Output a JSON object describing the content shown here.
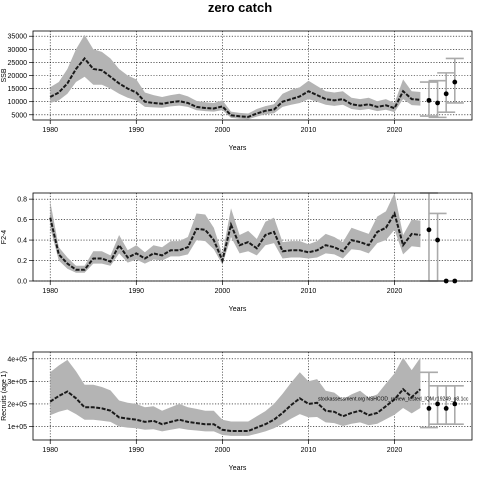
{
  "figure": {
    "title": "zero catch"
  },
  "chart_data": [
    {
      "type": "line",
      "id": "ssb",
      "xlabel": "Years",
      "ylabel": "SSB",
      "xlim": [
        1978,
        2029
      ],
      "ylim": [
        3000,
        37000
      ],
      "xticks": [
        1980,
        1990,
        2000,
        2010,
        2020
      ],
      "yticks": [
        5000,
        10000,
        15000,
        20000,
        25000,
        30000,
        35000
      ],
      "ytick_labels": [
        "5000",
        "10000",
        "15000",
        "20000",
        "25000",
        "30000",
        "35000"
      ],
      "grid": true,
      "note": "",
      "series": [
        {
          "x": [
            1980,
            1981,
            1982,
            1983,
            1984,
            1985,
            1986,
            1987,
            1988,
            1989,
            1990,
            1991,
            1992,
            1993,
            1994,
            1995,
            1996,
            1997,
            1998,
            1999,
            2000,
            2001,
            2002,
            2003,
            2004,
            2005,
            2006,
            2007,
            2008,
            2009,
            2010,
            2011,
            2012,
            2013,
            2014,
            2015,
            2016,
            2017,
            2018,
            2019,
            2020,
            2021,
            2022,
            2023
          ],
          "values": [
            11800,
            13500,
            17000,
            22500,
            26500,
            22500,
            22000,
            19500,
            17000,
            15000,
            13500,
            10000,
            9500,
            9200,
            9800,
            10200,
            9500,
            8000,
            7600,
            7400,
            8200,
            4800,
            4400,
            4200,
            5500,
            6500,
            7000,
            10000,
            11000,
            12000,
            14000,
            12500,
            11000,
            10500,
            11000,
            9000,
            8500,
            9000,
            8000,
            8600,
            7500,
            14000,
            11000,
            10700
          ],
          "lower": [
            9500,
            10500,
            13000,
            17500,
            19500,
            16500,
            16500,
            15000,
            13000,
            11500,
            10500,
            8000,
            7800,
            7700,
            8200,
            8500,
            8000,
            6700,
            6400,
            6200,
            6800,
            3800,
            3500,
            3300,
            4300,
            5200,
            5600,
            8000,
            8800,
            9500,
            11000,
            10000,
            8800,
            8400,
            8800,
            7200,
            6800,
            7200,
            6400,
            6900,
            6000,
            11000,
            8700,
            8500
          ],
          "upper": [
            15500,
            17500,
            22500,
            30000,
            35500,
            30000,
            29000,
            26500,
            22500,
            20000,
            18500,
            13500,
            12500,
            11800,
            12500,
            13000,
            12000,
            10300,
            9800,
            9500,
            10500,
            6200,
            5700,
            5500,
            7200,
            8300,
            9000,
            13000,
            14500,
            15500,
            18000,
            16000,
            14000,
            13500,
            14000,
            11500,
            11000,
            11500,
            10200,
            11000,
            9500,
            18500,
            14000,
            13700
          ]
        }
      ],
      "projection": [
        {
          "x": 2024,
          "value": 10500,
          "lower": 4500,
          "upper": 17500
        },
        {
          "x": 2025,
          "value": 9500,
          "lower": 4000,
          "upper": 18000
        },
        {
          "x": 2026,
          "value": 13000,
          "lower": 6000,
          "upper": 21000
        },
        {
          "x": 2027,
          "value": 17500,
          "lower": 9500,
          "upper": 26500
        }
      ]
    },
    {
      "type": "line",
      "id": "f",
      "xlabel": "Years",
      "ylabel": "F2-4",
      "xlim": [
        1978,
        2029
      ],
      "ylim": [
        0,
        0.86
      ],
      "xticks": [
        1980,
        1990,
        2000,
        2010,
        2020
      ],
      "yticks": [
        0,
        0.2,
        0.4,
        0.6,
        0.8
      ],
      "ytick_labels": [
        "0.0",
        "0.2",
        "0.4",
        "0.6",
        "0.8"
      ],
      "grid": true,
      "note": "",
      "series": [
        {
          "x": [
            1980,
            1981,
            1982,
            1983,
            1984,
            1985,
            1986,
            1987,
            1988,
            1989,
            1990,
            1991,
            1992,
            1993,
            1994,
            1995,
            1996,
            1997,
            1998,
            1999,
            2000,
            2001,
            2002,
            2003,
            2004,
            2005,
            2006,
            2007,
            2008,
            2009,
            2010,
            2011,
            2012,
            2013,
            2014,
            2015,
            2016,
            2017,
            2018,
            2019,
            2020,
            2021,
            2022,
            2023
          ],
          "values": [
            0.62,
            0.26,
            0.17,
            0.11,
            0.11,
            0.22,
            0.22,
            0.19,
            0.35,
            0.23,
            0.27,
            0.22,
            0.27,
            0.25,
            0.3,
            0.3,
            0.33,
            0.51,
            0.5,
            0.4,
            0.2,
            0.55,
            0.35,
            0.38,
            0.32,
            0.45,
            0.48,
            0.29,
            0.3,
            0.3,
            0.28,
            0.3,
            0.35,
            0.33,
            0.29,
            0.4,
            0.38,
            0.35,
            0.48,
            0.52,
            0.66,
            0.35,
            0.46,
            0.45
          ],
          "lower": [
            0.52,
            0.2,
            0.12,
            0.08,
            0.08,
            0.17,
            0.17,
            0.15,
            0.27,
            0.18,
            0.21,
            0.17,
            0.21,
            0.2,
            0.24,
            0.24,
            0.26,
            0.4,
            0.39,
            0.31,
            0.16,
            0.43,
            0.27,
            0.29,
            0.25,
            0.35,
            0.37,
            0.22,
            0.23,
            0.23,
            0.22,
            0.23,
            0.27,
            0.26,
            0.22,
            0.31,
            0.3,
            0.27,
            0.37,
            0.4,
            0.5,
            0.26,
            0.34,
            0.33
          ],
          "upper": [
            0.78,
            0.33,
            0.23,
            0.15,
            0.15,
            0.29,
            0.29,
            0.25,
            0.45,
            0.3,
            0.35,
            0.28,
            0.35,
            0.33,
            0.39,
            0.39,
            0.43,
            0.66,
            0.65,
            0.52,
            0.26,
            0.71,
            0.45,
            0.49,
            0.41,
            0.58,
            0.62,
            0.38,
            0.39,
            0.39,
            0.36,
            0.39,
            0.46,
            0.43,
            0.38,
            0.52,
            0.49,
            0.46,
            0.63,
            0.68,
            0.86,
            0.45,
            0.6,
            0.59
          ]
        }
      ],
      "projection": [
        {
          "x": 2024,
          "value": 0.5,
          "lower": 0.0,
          "upper": 0.86
        },
        {
          "x": 2025,
          "value": 0.4,
          "lower": 0.0,
          "upper": 0.66
        },
        {
          "x": 2026,
          "value": 0.0
        },
        {
          "x": 2027,
          "value": 0.0
        }
      ]
    },
    {
      "type": "line",
      "id": "rec",
      "xlabel": "Years",
      "ylabel": "Recruits (age 1)",
      "xlim": [
        1978,
        2029
      ],
      "ylim": [
        40000,
        430000
      ],
      "xticks": [
        1980,
        1990,
        2000,
        2010,
        2020
      ],
      "yticks": [
        100000,
        200000,
        300000,
        400000
      ],
      "ytick_labels": [
        "1e+05",
        "2e+05",
        "3e+05",
        "4e+05"
      ],
      "grid": true,
      "note": "stockassessment.org NSHCOD_review_tested_IQM.r19249_g8.1cc",
      "series": [
        {
          "x": [
            1980,
            1981,
            1982,
            1983,
            1984,
            1985,
            1986,
            1987,
            1988,
            1989,
            1990,
            1991,
            1992,
            1993,
            1994,
            1995,
            1996,
            1997,
            1998,
            1999,
            2000,
            2001,
            2002,
            2003,
            2004,
            2005,
            2006,
            2007,
            2008,
            2009,
            2010,
            2011,
            2012,
            2013,
            2014,
            2015,
            2016,
            2017,
            2018,
            2019,
            2020,
            2021,
            2022,
            2023
          ],
          "values": [
            210000,
            235000,
            255000,
            225000,
            185000,
            185000,
            180000,
            170000,
            140000,
            135000,
            130000,
            120000,
            125000,
            110000,
            120000,
            130000,
            120000,
            115000,
            110000,
            110000,
            85000,
            80000,
            80000,
            80000,
            95000,
            110000,
            130000,
            160000,
            195000,
            225000,
            200000,
            205000,
            170000,
            165000,
            145000,
            160000,
            170000,
            150000,
            160000,
            190000,
            220000,
            265000,
            230000,
            265000
          ],
          "lower": [
            150000,
            165000,
            175000,
            155000,
            130000,
            130000,
            125000,
            120000,
            100000,
            95000,
            92000,
            85000,
            88000,
            78000,
            85000,
            92000,
            85000,
            82000,
            78000,
            78000,
            62000,
            58000,
            58000,
            58000,
            68000,
            78000,
            92000,
            112000,
            135000,
            155000,
            140000,
            142000,
            118000,
            115000,
            102000,
            112000,
            118000,
            105000,
            112000,
            132000,
            152000,
            182000,
            158000,
            182000
          ],
          "upper": [
            340000,
            370000,
            395000,
            345000,
            285000,
            285000,
            275000,
            260000,
            215000,
            205000,
            200000,
            185000,
            190000,
            170000,
            185000,
            200000,
            185000,
            178000,
            170000,
            170000,
            130000,
            122000,
            122000,
            122000,
            145000,
            168000,
            200000,
            245000,
            295000,
            340000,
            300000,
            310000,
            258000,
            250000,
            220000,
            242000,
            258000,
            228000,
            242000,
            290000,
            335000,
            405000,
            350000,
            405000
          ]
        }
      ],
      "projection": [
        {
          "x": 2024,
          "value": 180000,
          "lower": 95000,
          "upper": 340000
        },
        {
          "x": 2025,
          "value": 200000,
          "lower": 110000,
          "upper": 280000
        },
        {
          "x": 2026,
          "value": 180000,
          "lower": 110000,
          "upper": 280000
        },
        {
          "x": 2027,
          "value": 200000,
          "lower": 110000,
          "upper": 280000
        }
      ]
    }
  ]
}
